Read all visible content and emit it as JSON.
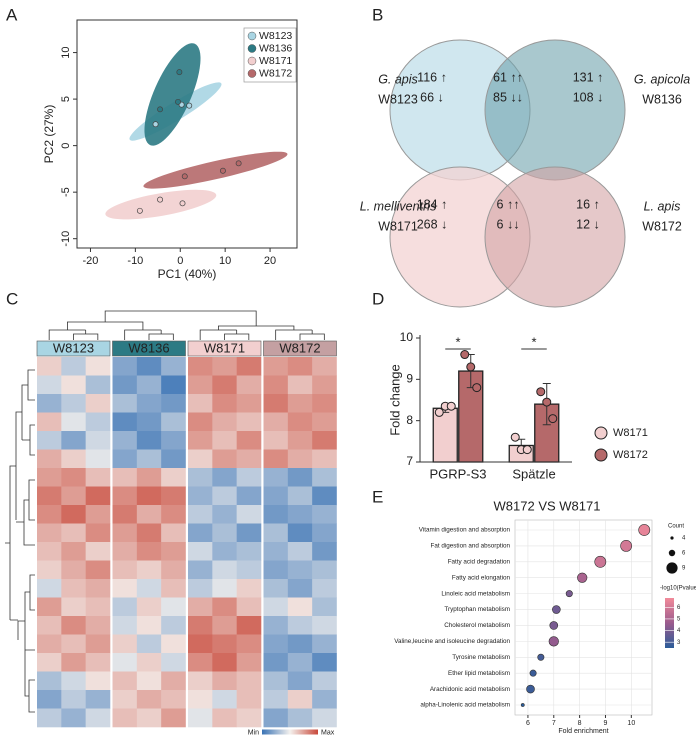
{
  "panel_labels": [
    "A",
    "B",
    "C",
    "D",
    "E"
  ],
  "venn": [
    {
      "left": {
        "species": "G. apis",
        "strain": "W8123",
        "up": "116 ↑",
        "down": "66 ↓"
      },
      "shared": {
        "up": "61 ↑↑",
        "down": "85 ↓↓"
      },
      "right": {
        "species": "G. apicola",
        "strain": "W8136",
        "up": "131 ↑",
        "down": "108 ↓"
      }
    },
    {
      "left": {
        "species": "L. melliventris",
        "strain": "W8171",
        "up": "184 ↑",
        "down": "268 ↓"
      },
      "shared": {
        "up": "6 ↑↑",
        "down": "6 ↓↓"
      },
      "right": {
        "species": "L. apis",
        "strain": "W8172",
        "up": "16 ↑",
        "down": "12 ↓"
      }
    }
  ],
  "chart_data": [
    {
      "type": "scatter",
      "xlabel": "PC1 (40%)",
      "ylabel": "PC2 (27%)",
      "xlim": [
        -23,
        26
      ],
      "ylim": [
        -11,
        13.5
      ],
      "xticks": [
        -20,
        -10,
        0,
        10,
        20
      ],
      "yticks": [
        -10,
        -5,
        0,
        5,
        10
      ],
      "legend": "upper right",
      "series": [
        {
          "name": "W8123",
          "color": "#a9d5e3",
          "x": [
            -5.5,
            0.3,
            2
          ],
          "y": [
            2.3,
            4.4,
            4.3
          ]
        },
        {
          "name": "W8136",
          "color": "#2c7a84",
          "x": [
            -4.5,
            -0.5,
            -0.2
          ],
          "y": [
            3.9,
            4.7,
            7.9
          ]
        },
        {
          "name": "W8171",
          "color": "#f2cfcf",
          "x": [
            -9,
            -4.5,
            0.5
          ],
          "y": [
            -7,
            -5.8,
            -6.2
          ]
        },
        {
          "name": "W8172",
          "color": "#b5696a",
          "x": [
            1,
            9.5,
            13
          ],
          "y": [
            -3.3,
            -2.7,
            -1.9
          ]
        }
      ]
    },
    {
      "type": "heatmap",
      "groups": [
        "W8123",
        "W8136",
        "W8171",
        "W8172"
      ],
      "colors": [
        "#a9d5e3",
        "#2c7a84",
        "#f2cfcf",
        "#c4a0a2"
      ],
      "zlim": [
        -1,
        1
      ],
      "scale_colors": [
        "#3a73b5",
        "#f4f1ee",
        "#c8483a"
      ],
      "scale_labels": [
        "Min",
        "Max"
      ],
      "matrix": [
        [
          0.2,
          -0.3,
          0.1,
          -0.6,
          -0.8,
          -0.5,
          0.6,
          0.5,
          0.7,
          0.5,
          0.6,
          0.4
        ],
        [
          -0.2,
          0.1,
          -0.4,
          -0.7,
          -0.5,
          -0.9,
          0.5,
          0.7,
          0.4,
          0.6,
          0.3,
          0.5
        ],
        [
          -0.5,
          -0.3,
          0.2,
          -0.4,
          -0.6,
          -0.7,
          0.3,
          0.6,
          0.5,
          0.7,
          0.5,
          0.6
        ],
        [
          0.3,
          -0.1,
          -0.3,
          -0.8,
          -0.7,
          -0.4,
          0.6,
          0.4,
          0.3,
          0.4,
          0.6,
          0.5
        ],
        [
          -0.3,
          -0.6,
          -0.2,
          -0.5,
          -0.8,
          -0.6,
          0.5,
          0.3,
          0.6,
          0.3,
          0.5,
          0.7
        ],
        [
          0.4,
          0.2,
          -0.1,
          -0.6,
          -0.4,
          -0.7,
          0.2,
          0.5,
          0.4,
          0.6,
          0.4,
          0.3
        ],
        [
          0.5,
          0.6,
          0.3,
          0.3,
          0.5,
          0.2,
          -0.4,
          -0.6,
          -0.3,
          -0.5,
          -0.7,
          -0.4
        ],
        [
          0.7,
          0.5,
          0.8,
          0.6,
          0.8,
          0.7,
          -0.5,
          -0.3,
          -0.6,
          -0.6,
          -0.4,
          -0.8
        ],
        [
          0.6,
          0.8,
          0.5,
          0.7,
          0.4,
          0.6,
          -0.3,
          -0.5,
          -0.2,
          -0.7,
          -0.6,
          -0.5
        ],
        [
          0.4,
          0.3,
          0.6,
          0.5,
          0.7,
          0.3,
          -0.6,
          -0.4,
          -0.7,
          -0.4,
          -0.8,
          -0.6
        ],
        [
          0.3,
          0.5,
          0.2,
          0.4,
          0.6,
          0.5,
          -0.2,
          -0.5,
          -0.4,
          -0.5,
          -0.3,
          -0.7
        ],
        [
          0.2,
          0.4,
          0.6,
          0.3,
          0.2,
          0.4,
          -0.5,
          -0.2,
          -0.3,
          -0.6,
          -0.5,
          -0.4
        ],
        [
          -0.2,
          0.3,
          0.4,
          0.1,
          -0.2,
          0.3,
          -0.3,
          -0.1,
          0.2,
          -0.4,
          -0.6,
          -0.3
        ],
        [
          0.5,
          0.2,
          0.3,
          -0.3,
          0.2,
          -0.1,
          0.4,
          0.6,
          0.3,
          -0.2,
          0.1,
          -0.4
        ],
        [
          0.3,
          0.6,
          0.4,
          -0.2,
          0.1,
          -0.3,
          0.7,
          0.5,
          0.8,
          -0.5,
          -0.3,
          -0.2
        ],
        [
          0.4,
          0.3,
          0.5,
          0.2,
          -0.3,
          0.1,
          0.8,
          0.7,
          0.6,
          -0.6,
          -0.7,
          -0.5
        ],
        [
          0.2,
          0.5,
          0.3,
          -0.1,
          0.2,
          -0.2,
          0.6,
          0.8,
          0.5,
          -0.7,
          -0.5,
          -0.8
        ],
        [
          -0.4,
          -0.2,
          0.1,
          0.3,
          0.1,
          0.4,
          0.2,
          0.4,
          0.3,
          -0.4,
          -0.6,
          -0.3
        ],
        [
          -0.6,
          -0.3,
          -0.5,
          0.2,
          0.4,
          0.3,
          0.1,
          -0.2,
          0.3,
          -0.3,
          0.2,
          -0.5
        ],
        [
          -0.3,
          -0.5,
          -0.2,
          0.3,
          0.2,
          0.5,
          -0.1,
          0.3,
          0.2,
          -0.6,
          -0.4,
          -0.2
        ]
      ]
    },
    {
      "type": "bar",
      "ylabel": "Fold change",
      "categories": [
        "PGRP-S3",
        "Spätzle"
      ],
      "ylim": [
        7,
        10
      ],
      "yticks": [
        7,
        8,
        9,
        10
      ],
      "series": [
        {
          "name": "W8171",
          "color": "#f2cfcf",
          "values": [
            8.3,
            7.4
          ],
          "errors": [
            0.1,
            0.15
          ],
          "points": [
            [
              8.2,
              8.35,
              8.35
            ],
            [
              7.6,
              7.3,
              7.3
            ]
          ]
        },
        {
          "name": "W8172",
          "color": "#b5696a",
          "values": [
            9.2,
            8.4
          ],
          "errors": [
            0.4,
            0.5
          ],
          "points": [
            [
              9.6,
              9.3,
              8.8
            ],
            [
              8.7,
              8.45,
              8.05
            ]
          ]
        }
      ],
      "annotations": [
        "*",
        "*"
      ]
    },
    {
      "type": "bubble",
      "title": "W8172 VS W8171",
      "xlabel": "Fold enrichment",
      "xlim": [
        5.5,
        10.8
      ],
      "xticks": [
        6,
        7,
        8,
        9,
        10
      ],
      "grid": true,
      "categories": [
        "Vitamin digestion and absorption",
        "Fat digestion and absorption",
        "Fatty acid degradation",
        "Fatty acid elongation",
        "Linoleic acid metabolism",
        "Tryptophan metabolism",
        "Cholesterol metabolism",
        "Valine,leucine and isoleucine degradation",
        "Tyrosine metabolism",
        "Ether lipid metabolism",
        "Arachidonic acid metabolism",
        "alpha-Linolenic acid metabolism"
      ],
      "values": [
        10.5,
        9.8,
        8.8,
        8.1,
        7.6,
        7.1,
        7.0,
        7.0,
        6.5,
        6.2,
        6.1,
        5.8
      ],
      "size": [
        9,
        9,
        9,
        8,
        6,
        7,
        7,
        8,
        6,
        6,
        7,
        4
      ],
      "color_values": [
        6.5,
        6.0,
        5.8,
        5.0,
        4.0,
        3.8,
        4.0,
        4.5,
        3.0,
        2.8,
        2.8,
        2.5
      ],
      "size_legend": {
        "title": "Count",
        "values": [
          4,
          6,
          9
        ]
      },
      "color_legend": {
        "title": "-log10(Pvalue)",
        "lim": [
          2.5,
          6.8
        ],
        "ticks": [
          3,
          4,
          5,
          6
        ],
        "colors": [
          "#2b5c99",
          "#9b5b8d",
          "#f28b9a"
        ]
      }
    }
  ]
}
